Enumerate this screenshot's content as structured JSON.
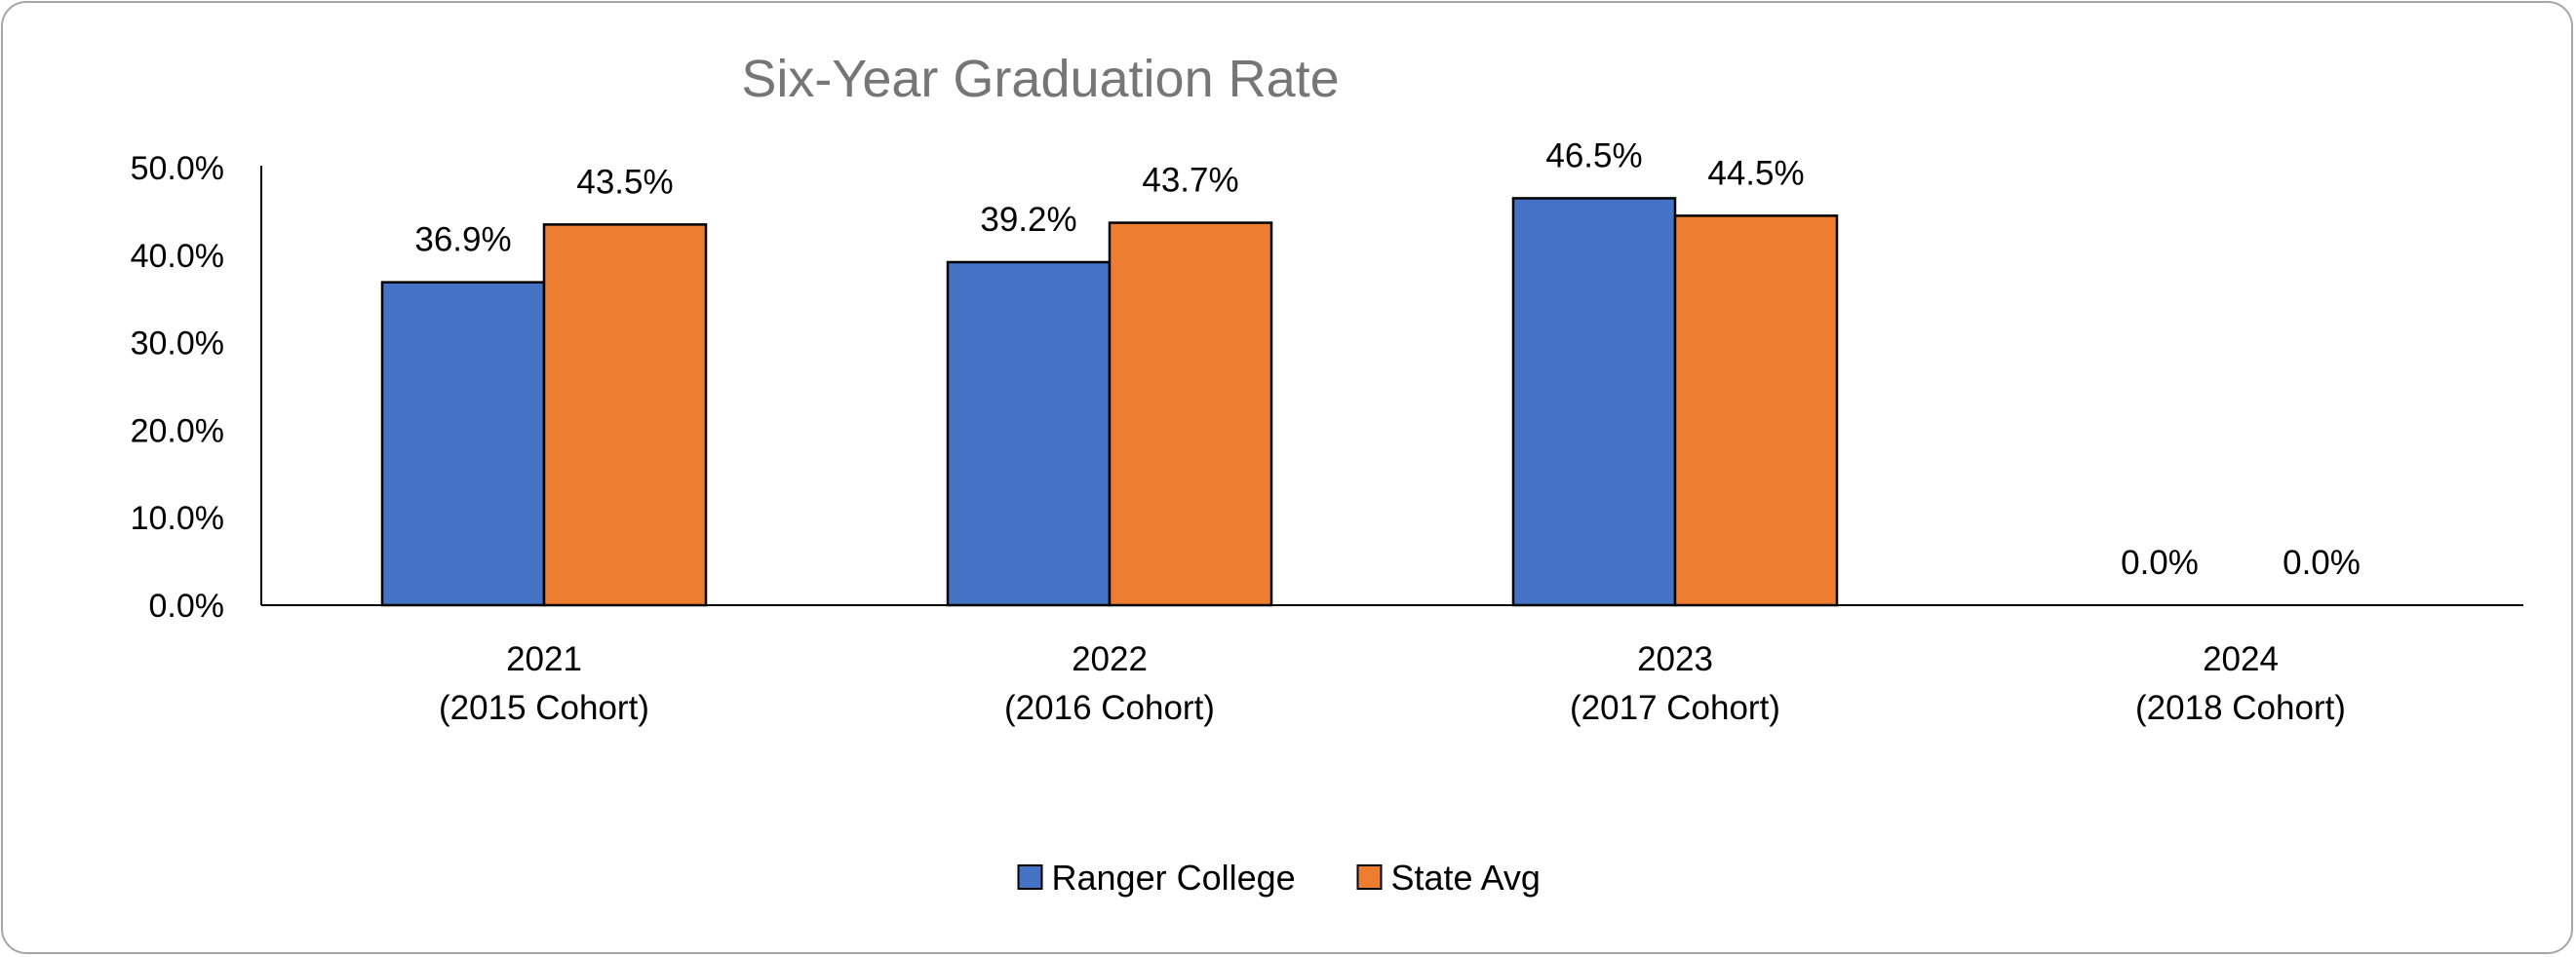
{
  "chart_data": {
    "type": "bar",
    "title": "Six-Year Graduation Rate",
    "xlabel": "",
    "ylabel": "",
    "ylim": [
      0,
      50
    ],
    "yticks": [
      "0.0%",
      "10.0%",
      "20.0%",
      "30.0%",
      "40.0%",
      "50.0%"
    ],
    "categories": [
      {
        "line1": "2021",
        "line2": "(2015 Cohort)"
      },
      {
        "line1": "2022",
        "line2": "(2016 Cohort)"
      },
      {
        "line1": "2023",
        "line2": "(2017 Cohort)"
      },
      {
        "line1": "2024",
        "line2": "(2018 Cohort)"
      }
    ],
    "series": [
      {
        "name": "Ranger College",
        "color": "#4472c4",
        "values": [
          36.9,
          39.2,
          46.5,
          0.0
        ],
        "labels": [
          "36.9%",
          "39.2%",
          "46.5%",
          "0.0%"
        ]
      },
      {
        "name": "State Avg",
        "color": "#ed7d31",
        "values": [
          43.5,
          43.7,
          44.5,
          0.0
        ],
        "labels": [
          "43.5%",
          "43.7%",
          "44.5%",
          "0.0%"
        ]
      }
    ],
    "legend": "bottom",
    "grid": false
  }
}
